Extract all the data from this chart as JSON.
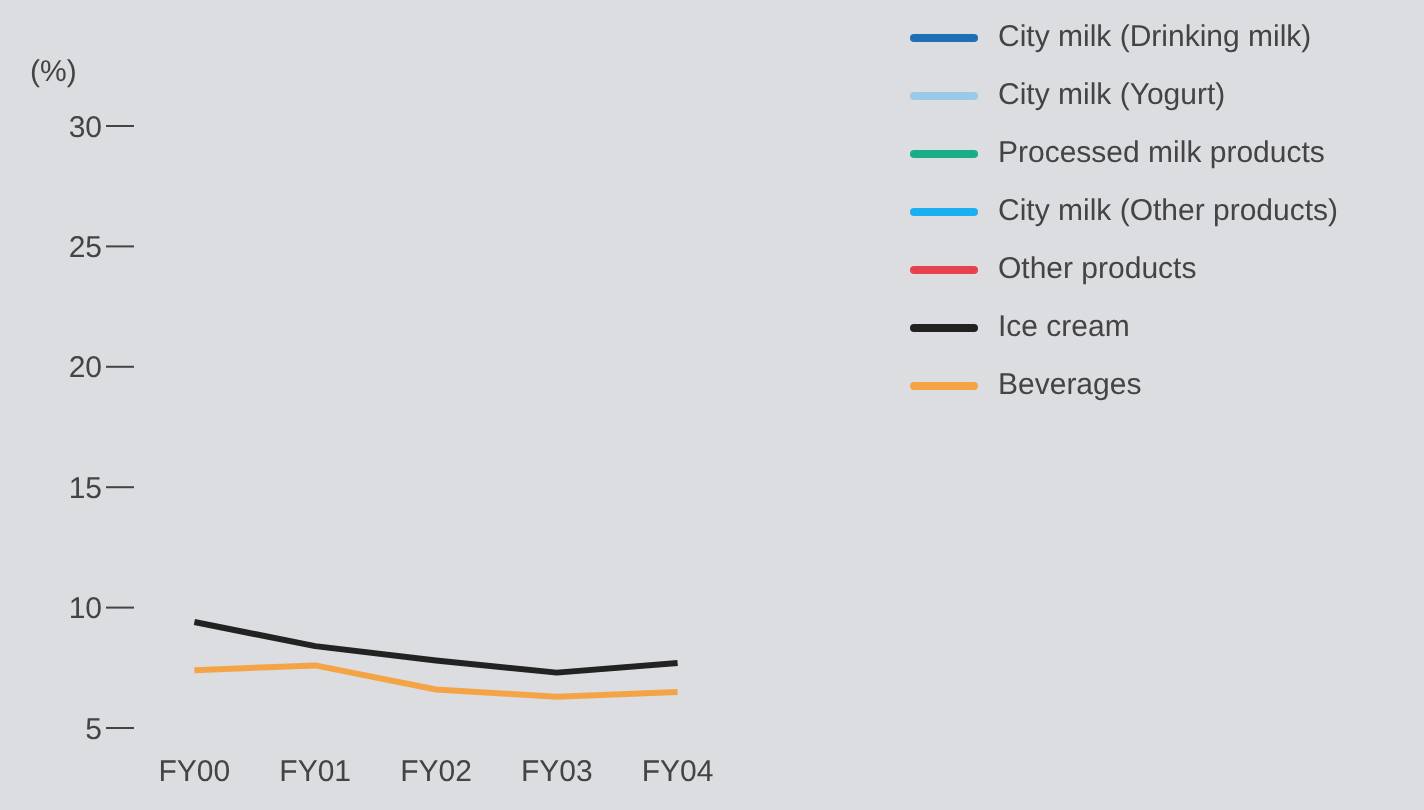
{
  "chart_data": {
    "type": "line",
    "ylabel": "(%)",
    "categories": [
      "FY00",
      "FY01",
      "FY02",
      "FY03",
      "FY04"
    ],
    "series": [
      {
        "name": "City milk (Drinking milk)",
        "color": "#1f6fb5",
        "values": [
          null,
          null,
          null,
          null,
          null
        ]
      },
      {
        "name": "City milk (Yogurt)",
        "color": "#9cc8ea",
        "values": [
          null,
          null,
          null,
          null,
          null
        ]
      },
      {
        "name": "Processed milk products",
        "color": "#1aae88",
        "values": [
          null,
          null,
          null,
          null,
          null
        ]
      },
      {
        "name": "City milk (Other products)",
        "color": "#1ab0ef",
        "values": [
          null,
          null,
          null,
          null,
          null
        ]
      },
      {
        "name": "Other products",
        "color": "#e8424f",
        "values": [
          null,
          null,
          null,
          null,
          null
        ]
      },
      {
        "name": "Ice cream",
        "color": "#222222",
        "values": [
          9.4,
          8.4,
          7.8,
          7.3,
          7.7
        ]
      },
      {
        "name": "Beverages",
        "color": "#f5a445",
        "values": [
          7.4,
          7.6,
          6.6,
          6.3,
          6.5
        ]
      }
    ],
    "ylim": [
      5,
      30
    ],
    "yticks": [
      5,
      10,
      15,
      20,
      25,
      30
    ],
    "grid": false,
    "legend": "top right",
    "marker": "none",
    "line_style": "solid"
  }
}
